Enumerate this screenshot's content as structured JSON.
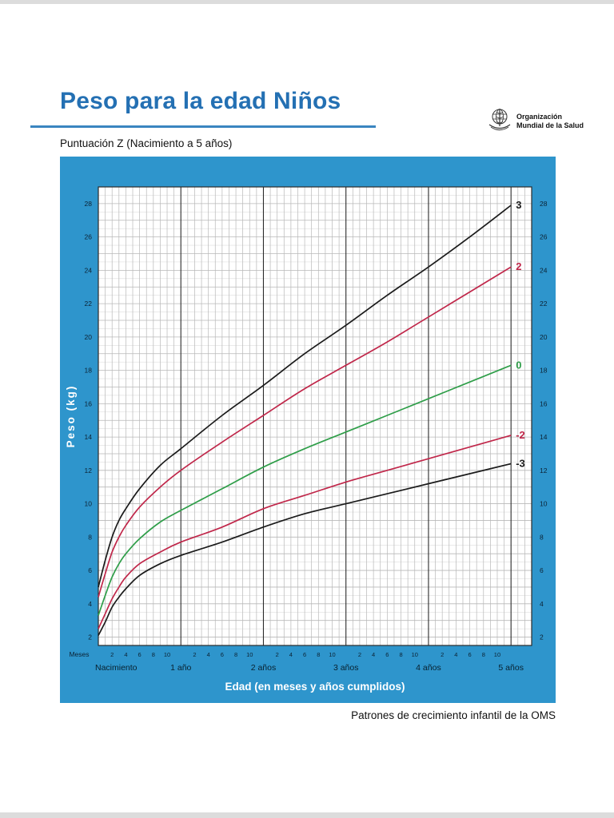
{
  "page": {
    "title": "Peso para la edad Niños",
    "subtitle": "Puntuación Z (Nacimiento a 5 años)",
    "caption": "Patrones de crecimiento infantil de la OMS",
    "accent_blue": "#2470b3",
    "panel_blue": "#2e95cc"
  },
  "logo": {
    "line1": "Organización",
    "line2": "Mundial de la Salud"
  },
  "chart_data": {
    "type": "line",
    "title": "Peso para la edad Niños — Puntuación Z (Nacimiento a 5 años)",
    "xlabel": "Edad (en meses y años cumplidos)",
    "ylabel": "Peso (kg)",
    "x_unit_label": "Meses",
    "xlim_months": [
      0,
      63
    ],
    "ylim_kg": [
      1.5,
      29
    ],
    "grid": true,
    "legend_position": "right-end-labels",
    "y_ticks": [
      2,
      4,
      6,
      8,
      10,
      12,
      14,
      16,
      18,
      20,
      22,
      24,
      26,
      28
    ],
    "x_month_tick_values": [
      2,
      4,
      6,
      8,
      10
    ],
    "x_year_labels": [
      {
        "month": 0,
        "label": "Nacimiento"
      },
      {
        "month": 12,
        "label": "1 año"
      },
      {
        "month": 24,
        "label": "2 años"
      },
      {
        "month": 36,
        "label": "3 años"
      },
      {
        "month": 48,
        "label": "4 años"
      },
      {
        "month": 60,
        "label": "5 años"
      }
    ],
    "x": [
      0,
      1,
      2,
      3,
      4,
      6,
      9,
      12,
      18,
      24,
      30,
      36,
      42,
      48,
      54,
      60
    ],
    "series": [
      {
        "name": "3",
        "color": "#1b1b1b",
        "values": [
          5.0,
          6.6,
          8.0,
          9.0,
          9.7,
          10.9,
          12.3,
          13.3,
          15.3,
          17.1,
          19.0,
          20.7,
          22.5,
          24.2,
          26.0,
          27.9
        ]
      },
      {
        "name": "2",
        "color": "#c0274a",
        "values": [
          4.4,
          5.8,
          7.1,
          8.0,
          8.7,
          9.8,
          11.0,
          12.0,
          13.7,
          15.3,
          16.9,
          18.3,
          19.7,
          21.2,
          22.7,
          24.2
        ]
      },
      {
        "name": "0",
        "color": "#2f9e49",
        "values": [
          3.3,
          4.5,
          5.6,
          6.4,
          7.0,
          7.9,
          8.9,
          9.6,
          10.9,
          12.2,
          13.3,
          14.3,
          15.3,
          16.3,
          17.3,
          18.3
        ]
      },
      {
        "name": "-2",
        "color": "#c0274a",
        "values": [
          2.5,
          3.4,
          4.3,
          5.0,
          5.6,
          6.4,
          7.1,
          7.7,
          8.6,
          9.7,
          10.5,
          11.3,
          12.0,
          12.7,
          13.4,
          14.1
        ]
      },
      {
        "name": "-3",
        "color": "#1b1b1b",
        "values": [
          2.1,
          2.9,
          3.8,
          4.4,
          4.9,
          5.7,
          6.4,
          6.9,
          7.7,
          8.6,
          9.4,
          10.0,
          10.6,
          11.2,
          11.8,
          12.4
        ]
      }
    ]
  }
}
